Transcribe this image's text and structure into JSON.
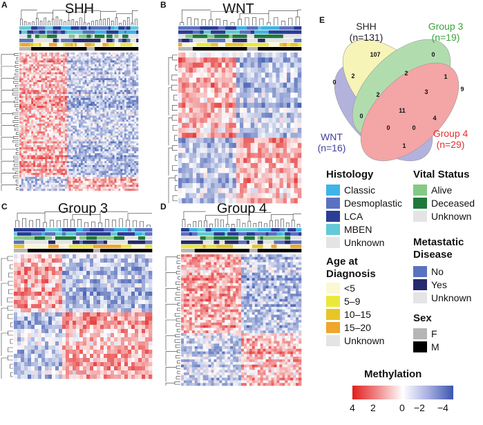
{
  "panels": [
    {
      "letter": "A",
      "title": "SHH"
    },
    {
      "letter": "B",
      "title": "WNT"
    },
    {
      "letter": "C",
      "title": "Group 3"
    },
    {
      "letter": "D",
      "title": "Group 4"
    },
    {
      "letter": "E"
    }
  ],
  "venn": {
    "sets": [
      {
        "name": "SHH",
        "n": "(n=131)",
        "color": "#f2ee8a"
      },
      {
        "name": "Group 3",
        "n": "(n=19)",
        "color": "#7ec77a"
      },
      {
        "name": "WNT",
        "n": "(n=16)",
        "color": "#7f7fc8"
      },
      {
        "name": "Group 4",
        "n": "(n=29)",
        "color": "#ee6b6b"
      }
    ],
    "regions": [
      {
        "label": "SHH only",
        "count": "107"
      },
      {
        "label": "Group 3 only",
        "count": "0"
      },
      {
        "label": "WNT only",
        "count": "0"
      },
      {
        "label": "Group 4 only",
        "count": "9"
      },
      {
        "label": "SHH & WNT",
        "count": "2"
      },
      {
        "label": "SHH & Group 3",
        "count": "2"
      },
      {
        "label": "Group 3 & Group 4",
        "count": "1"
      },
      {
        "label": "SHH & WNT & Group 3",
        "count": "2"
      },
      {
        "label": "SHH & Group 3 & Group 4",
        "count": "3"
      },
      {
        "label": "WNT & Group 3",
        "count": "0"
      },
      {
        "label": "SHH & Group 4",
        "count": "4"
      },
      {
        "label": "All four",
        "count": "11"
      },
      {
        "label": "WNT & Group 3 & Group 4",
        "count": "0"
      },
      {
        "label": "SHH & WNT & Group 4",
        "count": "0"
      },
      {
        "label": "WNT & Group 4",
        "count": "1"
      }
    ]
  },
  "legends": {
    "histology": {
      "title": "Histology",
      "items": [
        {
          "label": "Classic",
          "color": "#3fb4e6"
        },
        {
          "label": "Desmoplastic",
          "color": "#5b72c1"
        },
        {
          "label": "LCA",
          "color": "#2b3d96"
        },
        {
          "label": "MBEN",
          "color": "#64c9d6"
        },
        {
          "label": "Unknown",
          "color": "#e4e4e4"
        }
      ]
    },
    "age": {
      "title_line1": "Age at",
      "title_line2": "Diagnosis",
      "items": [
        {
          "label": "<5",
          "color": "#fbf8d2"
        },
        {
          "label": "5–9",
          "color": "#ece83a"
        },
        {
          "label": "10–15",
          "color": "#e8c527"
        },
        {
          "label": "15–20",
          "color": "#efa62a"
        },
        {
          "label": "Unknown",
          "color": "#e4e4e4"
        }
      ]
    },
    "vital": {
      "title": "Vital Status",
      "items": [
        {
          "label": "Alive",
          "color": "#84c984"
        },
        {
          "label": "Deceased",
          "color": "#1f7a3a"
        },
        {
          "label": "Unknown",
          "color": "#e4e4e4"
        }
      ]
    },
    "metastatic": {
      "title_line1": "Metastatic",
      "title_line2": "Disease",
      "items": [
        {
          "label": "No",
          "color": "#5b72c1"
        },
        {
          "label": "Yes",
          "color": "#262a6e"
        },
        {
          "label": "Unknown",
          "color": "#e4e4e4"
        }
      ]
    },
    "sex": {
      "title": "Sex",
      "items": [
        {
          "label": "F",
          "color": "#b5b5b5"
        },
        {
          "label": "M",
          "color": "#000000"
        }
      ]
    }
  },
  "colorbar": {
    "title": "Methylation",
    "ticks": [
      "4",
      "2",
      "0",
      "−2",
      "−4"
    ],
    "low_color": "#3a56b0",
    "mid_color": "#ffffff",
    "high_color": "#e21e1e"
  }
}
